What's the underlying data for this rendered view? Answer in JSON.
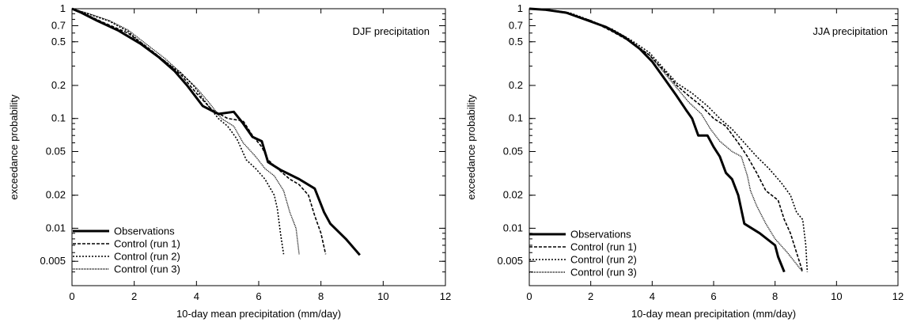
{
  "chart_data": [
    {
      "type": "line",
      "title": "DJF precipitation",
      "xlabel": "10-day mean precipitation (mm/day)",
      "ylabel": "exceedance probability",
      "xlim": [
        0,
        12
      ],
      "ylim": [
        0.003,
        1
      ],
      "yscale": "log",
      "xticks": [
        0,
        2,
        4,
        6,
        8,
        10,
        12
      ],
      "yticks": [
        1,
        0.7,
        0.5,
        0.2,
        0.1,
        0.05,
        0.02,
        0.01,
        0.005
      ],
      "ytick_labels": [
        "1",
        "0.7",
        "0.5",
        "0.2",
        "0.1",
        "0.05",
        "0.02",
        "0.01",
        "0.005"
      ],
      "grid": false,
      "legend_position": "bottom-left",
      "series": [
        {
          "name": "Observations",
          "style": "solid-thick",
          "points": [
            [
              0,
              1
            ],
            [
              0.3,
              0.92
            ],
            [
              0.8,
              0.78
            ],
            [
              1.5,
              0.63
            ],
            [
              2.2,
              0.48
            ],
            [
              2.8,
              0.36
            ],
            [
              3.3,
              0.27
            ],
            [
              3.7,
              0.2
            ],
            [
              4.2,
              0.13
            ],
            [
              4.7,
              0.11
            ],
            [
              5.2,
              0.115
            ],
            [
              5.5,
              0.09
            ],
            [
              5.8,
              0.068
            ],
            [
              6.1,
              0.062
            ],
            [
              6.3,
              0.04
            ],
            [
              6.7,
              0.034
            ],
            [
              7.3,
              0.028
            ],
            [
              7.8,
              0.023
            ],
            [
              8.1,
              0.014
            ],
            [
              8.3,
              0.011
            ],
            [
              8.8,
              0.008
            ],
            [
              9.25,
              0.0057
            ]
          ]
        },
        {
          "name": "Control (run 1)",
          "style": "dashed",
          "points": [
            [
              0,
              1
            ],
            [
              0.4,
              0.9
            ],
            [
              1,
              0.75
            ],
            [
              1.8,
              0.6
            ],
            [
              2.4,
              0.45
            ],
            [
              3,
              0.33
            ],
            [
              3.5,
              0.25
            ],
            [
              4,
              0.17
            ],
            [
              4.5,
              0.12
            ],
            [
              5,
              0.1
            ],
            [
              5.5,
              0.095
            ],
            [
              5.8,
              0.07
            ],
            [
              6.1,
              0.055
            ],
            [
              6.3,
              0.042
            ],
            [
              6.6,
              0.035
            ],
            [
              7,
              0.028
            ],
            [
              7.3,
              0.025
            ],
            [
              7.6,
              0.02
            ],
            [
              7.8,
              0.013
            ],
            [
              8,
              0.009
            ],
            [
              8.15,
              0.0058
            ]
          ]
        },
        {
          "name": "Control (run 2)",
          "style": "dotted",
          "points": [
            [
              0,
              1
            ],
            [
              0.5,
              0.9
            ],
            [
              1.2,
              0.77
            ],
            [
              1.8,
              0.62
            ],
            [
              2.5,
              0.42
            ],
            [
              3,
              0.33
            ],
            [
              3.5,
              0.26
            ],
            [
              3.9,
              0.2
            ],
            [
              4.3,
              0.14
            ],
            [
              4.7,
              0.1
            ],
            [
              5,
              0.085
            ],
            [
              5.3,
              0.065
            ],
            [
              5.6,
              0.042
            ],
            [
              5.9,
              0.035
            ],
            [
              6.2,
              0.028
            ],
            [
              6.5,
              0.02
            ],
            [
              6.6,
              0.015
            ],
            [
              6.7,
              0.009
            ],
            [
              6.8,
              0.0058
            ]
          ]
        },
        {
          "name": "Control (run 3)",
          "style": "dash-dot",
          "points": [
            [
              0,
              1
            ],
            [
              0.5,
              0.91
            ],
            [
              1.2,
              0.78
            ],
            [
              1.8,
              0.64
            ],
            [
              2.5,
              0.45
            ],
            [
              3,
              0.35
            ],
            [
              3.5,
              0.26
            ],
            [
              4,
              0.19
            ],
            [
              4.4,
              0.14
            ],
            [
              4.8,
              0.1
            ],
            [
              5.2,
              0.085
            ],
            [
              5.5,
              0.06
            ],
            [
              5.9,
              0.045
            ],
            [
              6.2,
              0.035
            ],
            [
              6.5,
              0.03
            ],
            [
              6.8,
              0.022
            ],
            [
              7,
              0.014
            ],
            [
              7.2,
              0.01
            ],
            [
              7.3,
              0.0058
            ]
          ]
        }
      ]
    },
    {
      "type": "line",
      "title": "JJA precipitation",
      "xlabel": "10-day mean precipitation (mm/day)",
      "ylabel": "exceedance probability",
      "xlim": [
        0,
        12
      ],
      "ylim": [
        0.003,
        1
      ],
      "yscale": "log",
      "xticks": [
        0,
        2,
        4,
        6,
        8,
        10,
        12
      ],
      "yticks": [
        1,
        0.7,
        0.5,
        0.2,
        0.1,
        0.05,
        0.02,
        0.01,
        0.005
      ],
      "ytick_labels": [
        "1",
        "0.7",
        "0.5",
        "0.2",
        "0.1",
        "0.05",
        "0.02",
        "0.01",
        "0.005"
      ],
      "grid": false,
      "legend_position": "bottom-left",
      "series": [
        {
          "name": "Observations",
          "style": "solid-thick",
          "points": [
            [
              0,
              1
            ],
            [
              0.5,
              0.98
            ],
            [
              1.2,
              0.92
            ],
            [
              1.8,
              0.8
            ],
            [
              2.5,
              0.68
            ],
            [
              3.1,
              0.55
            ],
            [
              3.6,
              0.43
            ],
            [
              4,
              0.33
            ],
            [
              4.4,
              0.23
            ],
            [
              4.8,
              0.16
            ],
            [
              5.1,
              0.12
            ],
            [
              5.3,
              0.1
            ],
            [
              5.5,
              0.07
            ],
            [
              5.8,
              0.07
            ],
            [
              6,
              0.055
            ],
            [
              6.2,
              0.045
            ],
            [
              6.4,
              0.032
            ],
            [
              6.6,
              0.028
            ],
            [
              6.8,
              0.02
            ],
            [
              7,
              0.011
            ],
            [
              7.5,
              0.009
            ],
            [
              8,
              0.007
            ],
            [
              8.1,
              0.0055
            ],
            [
              8.3,
              0.004
            ]
          ]
        },
        {
          "name": "Control (run 1)",
          "style": "dashed",
          "points": [
            [
              0,
              1
            ],
            [
              0.6,
              0.97
            ],
            [
              1.3,
              0.9
            ],
            [
              2,
              0.78
            ],
            [
              2.7,
              0.62
            ],
            [
              3.3,
              0.5
            ],
            [
              3.9,
              0.38
            ],
            [
              4.4,
              0.27
            ],
            [
              4.8,
              0.2
            ],
            [
              5.2,
              0.16
            ],
            [
              5.6,
              0.13
            ],
            [
              6,
              0.1
            ],
            [
              6.4,
              0.085
            ],
            [
              6.8,
              0.06
            ],
            [
              7.1,
              0.045
            ],
            [
              7.4,
              0.032
            ],
            [
              7.7,
              0.022
            ],
            [
              8.1,
              0.018
            ],
            [
              8.3,
              0.012
            ],
            [
              8.5,
              0.009
            ],
            [
              8.7,
              0.006
            ],
            [
              8.9,
              0.004
            ]
          ]
        },
        {
          "name": "Control (run 2)",
          "style": "dotted",
          "points": [
            [
              0,
              1
            ],
            [
              0.6,
              0.98
            ],
            [
              1.3,
              0.92
            ],
            [
              2,
              0.78
            ],
            [
              2.7,
              0.65
            ],
            [
              3.3,
              0.52
            ],
            [
              3.9,
              0.4
            ],
            [
              4.4,
              0.28
            ],
            [
              4.8,
              0.21
            ],
            [
              5.3,
              0.17
            ],
            [
              5.8,
              0.13
            ],
            [
              6.2,
              0.1
            ],
            [
              6.6,
              0.08
            ],
            [
              7,
              0.06
            ],
            [
              7.4,
              0.045
            ],
            [
              7.8,
              0.035
            ],
            [
              8.2,
              0.026
            ],
            [
              8.5,
              0.02
            ],
            [
              8.7,
              0.014
            ],
            [
              8.9,
              0.012
            ],
            [
              9,
              0.007
            ],
            [
              9.05,
              0.004
            ]
          ]
        },
        {
          "name": "Control (run 3)",
          "style": "dash-dot",
          "points": [
            [
              0,
              1
            ],
            [
              0.6,
              0.97
            ],
            [
              1.3,
              0.9
            ],
            [
              2,
              0.77
            ],
            [
              2.7,
              0.63
            ],
            [
              3.3,
              0.5
            ],
            [
              3.9,
              0.38
            ],
            [
              4.4,
              0.26
            ],
            [
              4.8,
              0.19
            ],
            [
              5.2,
              0.14
            ],
            [
              5.6,
              0.11
            ],
            [
              5.9,
              0.08
            ],
            [
              6.2,
              0.062
            ],
            [
              6.6,
              0.05
            ],
            [
              6.9,
              0.045
            ],
            [
              7.1,
              0.03
            ],
            [
              7.2,
              0.022
            ],
            [
              7.4,
              0.016
            ],
            [
              7.7,
              0.011
            ],
            [
              8,
              0.008
            ],
            [
              8.4,
              0.006
            ],
            [
              8.9,
              0.004
            ]
          ]
        }
      ]
    }
  ]
}
